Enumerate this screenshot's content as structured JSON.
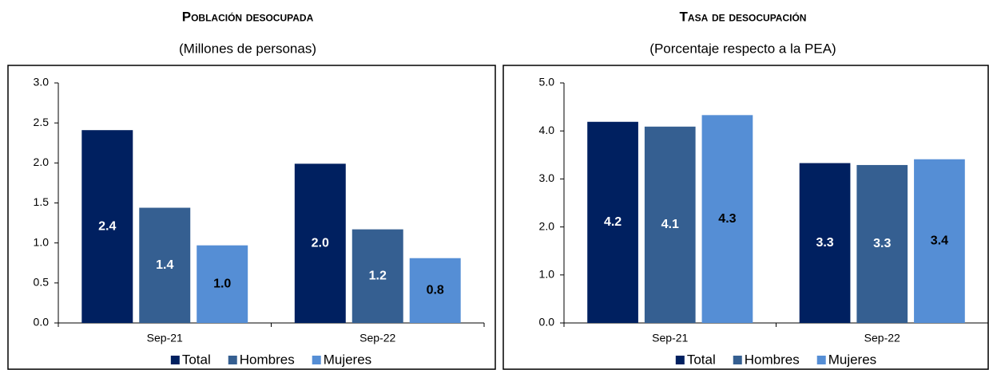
{
  "chart_data": [
    {
      "type": "bar",
      "title": "Población desocupada",
      "subtitle": "(Millones de personas)",
      "categories": [
        "Sep-21",
        "Sep-22"
      ],
      "series": [
        {
          "name": "Total",
          "color": "#002060",
          "values": [
            2.41,
            1.99
          ],
          "value_labels": [
            "2.4",
            "2.0"
          ]
        },
        {
          "name": "Hombres",
          "color": "#355f91",
          "values": [
            1.44,
            1.17
          ],
          "value_labels": [
            "1.4",
            "1.2"
          ]
        },
        {
          "name": "Mujeres",
          "color": "#558ed5",
          "values": [
            0.97,
            0.81
          ],
          "value_labels": [
            "1.0",
            "0.8"
          ]
        }
      ],
      "ylim": [
        0,
        3
      ],
      "yticks": [
        {
          "value": 0,
          "label": "0.0"
        },
        0.5,
        {
          "value": 1,
          "label": "1.0"
        },
        1.5,
        {
          "value": 2,
          "label": "2.0"
        },
        2.5,
        {
          "value": 3,
          "label": "3.0"
        }
      ]
    },
    {
      "type": "bar",
      "title": "Tasa de desocupación",
      "subtitle": "(Porcentaje respecto a la PEA)",
      "categories": [
        "Sep-21",
        "Sep-22"
      ],
      "series": [
        {
          "name": "Total",
          "color": "#002060",
          "values": [
            4.19,
            3.33
          ],
          "value_labels": [
            "4.2",
            "3.3"
          ]
        },
        {
          "name": "Hombres",
          "color": "#355f91",
          "values": [
            4.09,
            3.29
          ],
          "value_labels": [
            "4.1",
            "3.3"
          ]
        },
        {
          "name": "Mujeres",
          "color": "#558ed5",
          "values": [
            4.33,
            3.41
          ],
          "value_labels": [
            "4.3",
            "3.4"
          ]
        }
      ],
      "ylim": [
        0,
        5
      ],
      "yticks": [
        {
          "value": 0,
          "label": "0.0"
        },
        {
          "value": 1,
          "label": "1.0"
        },
        {
          "value": 2,
          "label": "2.0"
        },
        {
          "value": 3,
          "label": "3.0"
        },
        {
          "value": 4,
          "label": "4.0"
        },
        {
          "value": 5,
          "label": "5.0"
        }
      ]
    }
  ]
}
